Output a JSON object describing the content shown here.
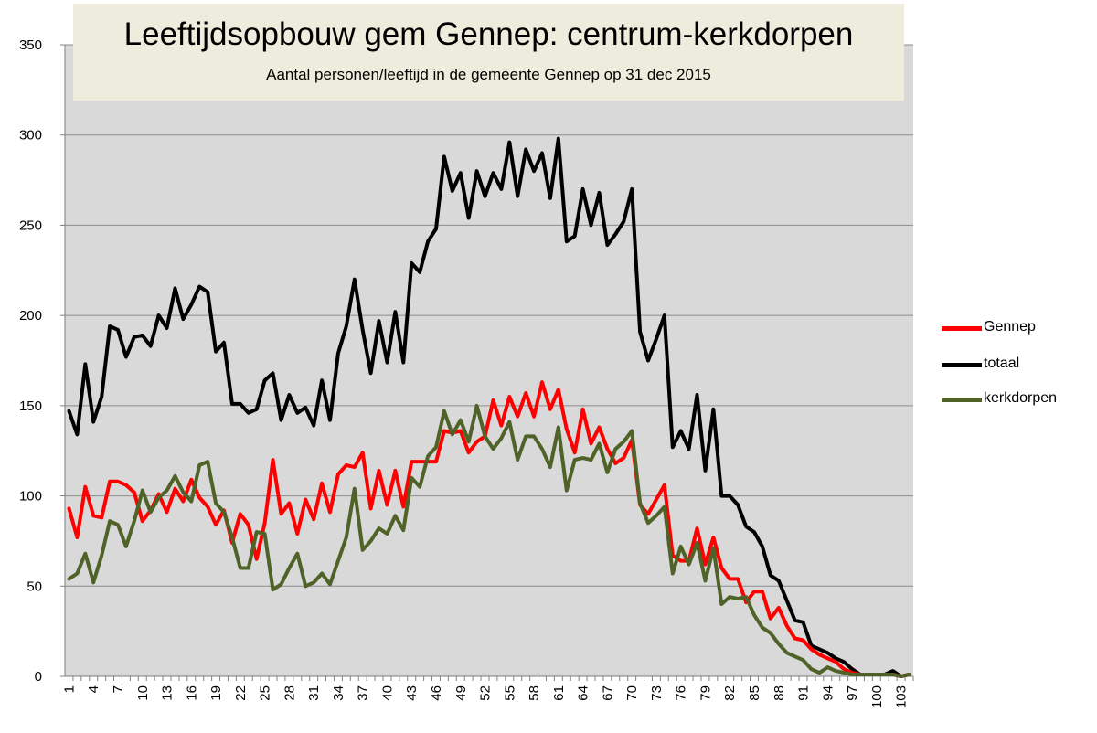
{
  "chart_data": {
    "type": "line",
    "title": "Leeftijdsopbouw gem Gennep: centrum-kerkdorpen",
    "subtitle": "Aantal personen/leeftijd in de gemeente Gennep op 31 dec 2015",
    "xlabel": "",
    "ylabel": "",
    "ylim": [
      0,
      350
    ],
    "yticks": [
      0,
      50,
      100,
      150,
      200,
      250,
      300,
      350
    ],
    "xlim": [
      1,
      104
    ],
    "xticks": [
      1,
      4,
      7,
      10,
      13,
      16,
      19,
      22,
      25,
      28,
      31,
      34,
      37,
      40,
      43,
      46,
      49,
      52,
      55,
      58,
      61,
      64,
      67,
      70,
      73,
      76,
      79,
      82,
      85,
      88,
      91,
      94,
      97,
      100,
      103
    ],
    "grid": "horizontal",
    "legend_position": "right",
    "plot_background": "#d9d9d9",
    "series": [
      {
        "name": "Gennep",
        "color": "#ff0000",
        "values": [
          93,
          77,
          105,
          89,
          88,
          108,
          108,
          106,
          102,
          86,
          92,
          101,
          91,
          104,
          97,
          109,
          99,
          94,
          84,
          92,
          74,
          90,
          84,
          65,
          85,
          120,
          90,
          96,
          79,
          98,
          87,
          107,
          91,
          112,
          117,
          116,
          124,
          93,
          114,
          95,
          114,
          94,
          119,
          119,
          119,
          119,
          136,
          135,
          136,
          124,
          130,
          133,
          153,
          139,
          155,
          144,
          157,
          144,
          163,
          148,
          159,
          137,
          124,
          148,
          129,
          138,
          126,
          118,
          121,
          131,
          95,
          90,
          98,
          106,
          67,
          64,
          64,
          82,
          62,
          77,
          60,
          54,
          54,
          41,
          47,
          47,
          32,
          38,
          28,
          21,
          20,
          15,
          12,
          10,
          8,
          4,
          2,
          1,
          1,
          1,
          1,
          1,
          0,
          1
        ]
      },
      {
        "name": "totaal",
        "color": "#000000",
        "values": [
          147,
          134,
          173,
          141,
          155,
          194,
          192,
          177,
          188,
          189,
          183,
          200,
          193,
          215,
          198,
          206,
          216,
          213,
          180,
          185,
          151,
          151,
          146,
          148,
          164,
          168,
          142,
          156,
          146,
          149,
          139,
          164,
          142,
          179,
          194,
          220,
          192,
          168,
          197,
          174,
          202,
          174,
          229,
          224,
          241,
          248,
          288,
          269,
          279,
          254,
          280,
          266,
          279,
          270,
          296,
          266,
          292,
          280,
          290,
          265,
          298,
          241,
          244,
          270,
          250,
          268,
          239,
          245,
          252,
          270,
          191,
          175,
          187,
          200,
          127,
          136,
          126,
          156,
          114,
          148,
          100,
          100,
          95,
          83,
          80,
          72,
          56,
          53,
          42,
          31,
          30,
          17,
          15,
          13,
          10,
          8,
          4,
          1,
          1,
          1,
          1,
          3,
          0,
          1
        ]
      },
      {
        "name": "kerkdorpen",
        "color": "#4f6228",
        "values": [
          54,
          57,
          68,
          52,
          67,
          86,
          84,
          72,
          86,
          103,
          91,
          99,
          103,
          111,
          102,
          97,
          117,
          119,
          96,
          91,
          77,
          60,
          60,
          80,
          79,
          48,
          51,
          60,
          68,
          50,
          52,
          57,
          51,
          64,
          77,
          104,
          70,
          75,
          82,
          79,
          89,
          81,
          110,
          105,
          122,
          127,
          147,
          134,
          142,
          130,
          150,
          133,
          126,
          132,
          141,
          120,
          133,
          133,
          126,
          116,
          138,
          103,
          120,
          121,
          120,
          129,
          113,
          126,
          130,
          136,
          96,
          85,
          89,
          94,
          57,
          72,
          62,
          74,
          53,
          71,
          40,
          44,
          43,
          44,
          34,
          27,
          24,
          18,
          13,
          11,
          9,
          4,
          2,
          5,
          3,
          2,
          1,
          1,
          1,
          1,
          1,
          1,
          0,
          1
        ]
      }
    ]
  }
}
